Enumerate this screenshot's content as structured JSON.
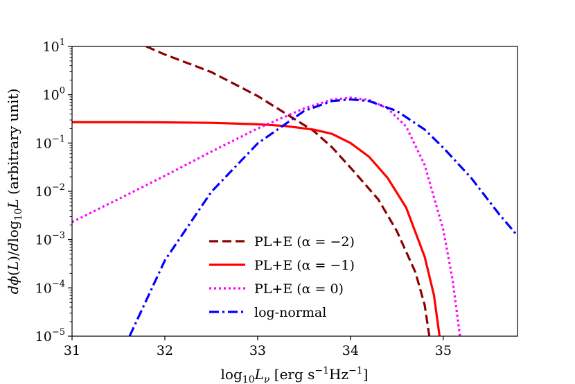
{
  "chart_data": {
    "type": "line",
    "title": "",
    "xlabel": "log₁₀Lν [erg s⁻¹Hz⁻¹]",
    "ylabel": "dϕ(L)/dlog₁₀L (arbitrary unit)",
    "xlim": [
      31,
      35.8
    ],
    "ylim": [
      1e-05,
      10
    ],
    "yscale": "log",
    "grid": false,
    "legend_position": "lower-center",
    "x_ticks": [
      {
        "value": 31,
        "label": "31"
      },
      {
        "value": 32,
        "label": "32"
      },
      {
        "value": 33,
        "label": "33"
      },
      {
        "value": 34,
        "label": "34"
      },
      {
        "value": 35,
        "label": "35"
      }
    ],
    "y_ticks": [
      {
        "value": 10,
        "base": "10",
        "exp": "1"
      },
      {
        "value": 1,
        "base": "10",
        "exp": "0"
      },
      {
        "value": 0.1,
        "base": "10",
        "exp": "−1"
      },
      {
        "value": 0.01,
        "base": "10",
        "exp": "−2"
      },
      {
        "value": 0.001,
        "base": "10",
        "exp": "−3"
      },
      {
        "value": 0.0001,
        "base": "10",
        "exp": "−4"
      },
      {
        "value": 1e-05,
        "base": "10",
        "exp": "−5"
      }
    ],
    "series": [
      {
        "name": "PL+E (α = −2)",
        "color": "#8b0000",
        "style": "dashed",
        "x": [
          31.8,
          32.0,
          32.5,
          33.0,
          33.3,
          33.6,
          33.8,
          34.0,
          34.3,
          34.5,
          34.7,
          34.8,
          34.85
        ],
        "y": [
          10.0,
          6.8,
          2.95,
          0.94,
          0.41,
          0.18,
          0.082,
          0.031,
          0.0068,
          0.0015,
          0.00021,
          4.4e-05,
          1e-05
        ]
      },
      {
        "name": "PL+E (α = −1)",
        "color": "#ff0000",
        "style": "solid",
        "x": [
          31.0,
          31.5,
          32.0,
          32.5,
          33.0,
          33.3,
          33.6,
          33.8,
          34.0,
          34.2,
          34.4,
          34.6,
          34.8,
          34.9,
          34.96
        ],
        "y": [
          0.27,
          0.27,
          0.268,
          0.262,
          0.245,
          0.225,
          0.19,
          0.155,
          0.1,
          0.052,
          0.019,
          0.0046,
          0.00044,
          7e-05,
          1e-05
        ]
      },
      {
        "name": "PL+E (α = 0)",
        "color": "#ff00ff",
        "style": "dotted",
        "x": [
          31.0,
          31.5,
          32.0,
          32.5,
          33.0,
          33.5,
          33.8,
          34.0,
          34.2,
          34.4,
          34.6,
          34.8,
          35.0,
          35.1,
          35.18
        ],
        "y": [
          0.0023,
          0.0069,
          0.021,
          0.066,
          0.2,
          0.52,
          0.79,
          0.87,
          0.78,
          0.52,
          0.22,
          0.035,
          0.0016,
          0.00015,
          1e-05
        ]
      },
      {
        "name": "log-normal",
        "color": "#0000ff",
        "style": "dashdot",
        "x": [
          31.62,
          32.0,
          32.5,
          33.0,
          33.5,
          33.8,
          34.0,
          34.2,
          34.5,
          34.8,
          35.0,
          35.3,
          35.6,
          35.8
        ],
        "y": [
          1e-05,
          0.00037,
          0.0097,
          0.098,
          0.46,
          0.74,
          0.8,
          0.74,
          0.46,
          0.19,
          0.08,
          0.019,
          0.0034,
          0.0012
        ]
      }
    ]
  }
}
